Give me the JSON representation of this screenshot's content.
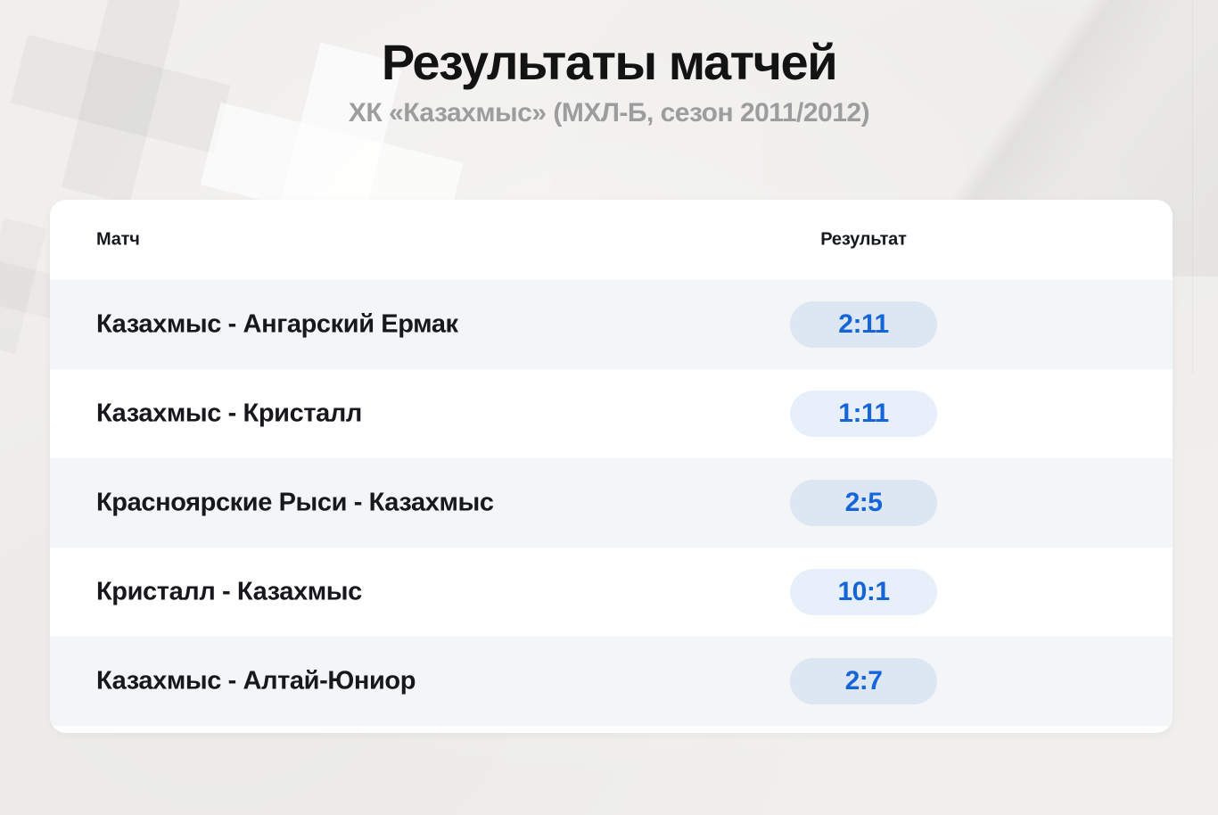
{
  "page": {
    "title": "Результаты матчей",
    "subtitle": "ХК «Казахмыс» (МХЛ-Б, сезон 2011/2012)"
  },
  "table": {
    "columns": {
      "match": "Матч",
      "result": "Результат"
    },
    "rows": [
      {
        "match": "Казахмыс - Ангарский Ермак",
        "result": "2:11"
      },
      {
        "match": "Казахмыс - Кристалл",
        "result": "1:11"
      },
      {
        "match": "Красноярские Рыси - Казахмыс",
        "result": "2:5"
      },
      {
        "match": "Кристалл - Казахмыс",
        "result": "10:1"
      },
      {
        "match": "Казахмыс - Алтай-Юниор",
        "result": "2:7"
      }
    ]
  },
  "colors": {
    "accent_blue": "#1565d8",
    "pill_bg": "#e6edf8",
    "pill_bg_on_gray": "#dfe6f1",
    "row_alt_bg": "#f4f5f7",
    "card_bg": "#ffffff",
    "page_bg": "#f0efed",
    "title_color": "#131313",
    "subtitle_gray": "#9d9d9d"
  },
  "chart_data": {
    "type": "table",
    "title": "Результаты матчей",
    "subtitle": "ХК «Казахмыс» (МХЛ-Б, сезон 2011/2012)",
    "columns": [
      "Матч",
      "Результат"
    ],
    "rows": [
      [
        "Казахмыс - Ангарский Ермак",
        "2:11"
      ],
      [
        "Казахмыс - Кристалл",
        "1:11"
      ],
      [
        "Красноярские Рыси - Казахмыс",
        "2:5"
      ],
      [
        "Кристалл - Казахмыс",
        "10:1"
      ],
      [
        "Казахмыс - Алтай-Юниор",
        "2:7"
      ]
    ],
    "scores_numeric": [
      [
        2,
        11
      ],
      [
        1,
        11
      ],
      [
        2,
        5
      ],
      [
        10,
        1
      ],
      [
        2,
        7
      ]
    ],
    "layout": {
      "zebra_striping": true,
      "score_badge": "pill"
    }
  }
}
